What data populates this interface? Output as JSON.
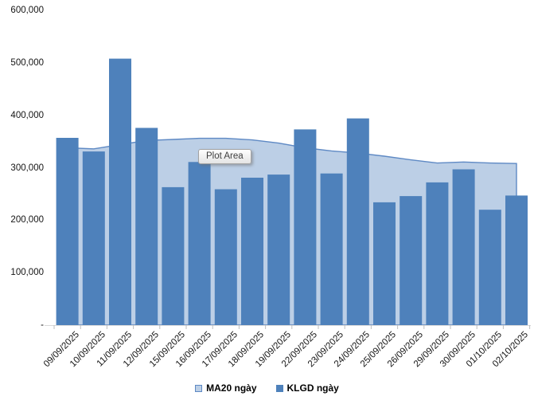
{
  "chart_data": {
    "type": "bar",
    "subtype": "volume-bars-with-moving-average-area",
    "categories": [
      "09/09/2025",
      "10/09/2025",
      "11/09/2025",
      "12/09/2025",
      "15/09/2025",
      "16/09/2025",
      "17/09/2025",
      "18/09/2025",
      "19/09/2025",
      "22/09/2025",
      "23/09/2025",
      "24/09/2025",
      "25/09/2025",
      "26/09/2025",
      "29/09/2025",
      "30/09/2025",
      "01/10/2025",
      "02/10/2025"
    ],
    "series": [
      {
        "name": "MA20 ngày",
        "type": "area",
        "fill_color": "#BCCFE6",
        "line_color": "#5E89C4",
        "values": [
          338000,
          336000,
          344000,
          352000,
          354000,
          356000,
          356000,
          353000,
          347000,
          338000,
          332000,
          328000,
          322000,
          315000,
          309000,
          311000,
          309000,
          308000
        ]
      },
      {
        "name": "KLGD ngày",
        "type": "bar",
        "fill_color": "#4E81BB",
        "values": [
          357000,
          331000,
          508000,
          376000,
          263000,
          311000,
          259000,
          281000,
          287000,
          373000,
          289000,
          394000,
          234000,
          246000,
          272000,
          297000,
          220000,
          247000
        ]
      }
    ],
    "title": "",
    "xlabel": "",
    "ylabel": "",
    "ylim": [
      0,
      600000
    ],
    "ytick_step": 100000,
    "ytick_labels": [
      "-",
      "100,000",
      "200,000",
      "300,000",
      "400,000",
      "500,000",
      "600,000"
    ],
    "grid": false,
    "legend_position": "bottom",
    "axis_tick_color": "#BFBFBF",
    "axis_line_color": "#D9D9D9",
    "text_color": "#141414"
  },
  "tooltip": {
    "label": "Plot Area"
  }
}
